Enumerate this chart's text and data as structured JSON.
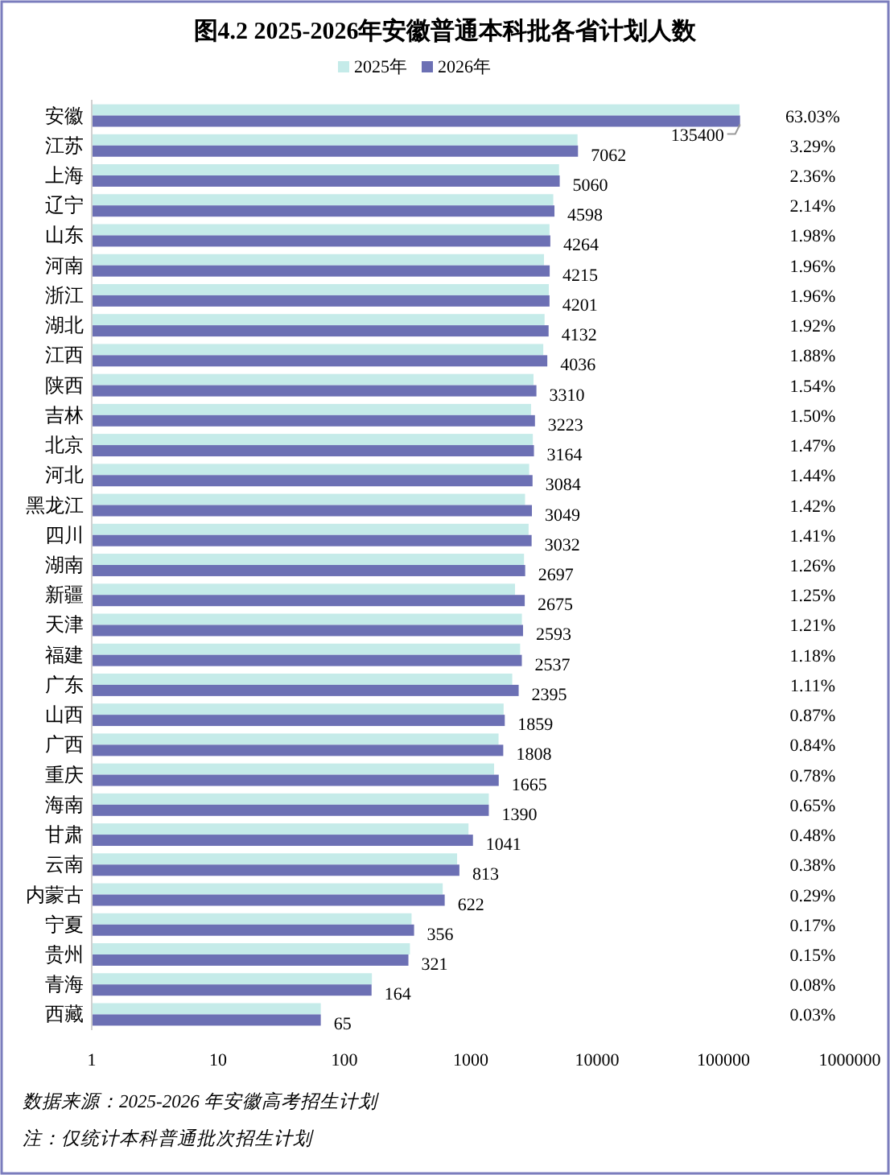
{
  "chart_data": {
    "type": "bar",
    "orientation": "horizontal",
    "title": "图4.2 2025-2026年安徽普通本科批各省计划人数",
    "log": "x",
    "legend": "top",
    "xlim": [
      1,
      1000000
    ],
    "xticks": [
      1,
      10,
      100,
      1000,
      10000,
      100000,
      1000000
    ],
    "categories": [
      "安徽",
      "江苏",
      "上海",
      "辽宁",
      "山东",
      "河南",
      "浙江",
      "湖北",
      "江西",
      "陕西",
      "吉林",
      "北京",
      "河北",
      "黑龙江",
      "四川",
      "湖南",
      "新疆",
      "天津",
      "福建",
      "广东",
      "山西",
      "广西",
      "重庆",
      "海南",
      "甘肃",
      "云南",
      "内蒙古",
      "宁夏",
      "贵州",
      "青海",
      "西藏"
    ],
    "series": [
      {
        "name": "2025年",
        "color": "#c5ebe9",
        "values": [
          134000,
          7000,
          5000,
          4500,
          4200,
          3800,
          4150,
          3840,
          3750,
          3140,
          3000,
          3100,
          2900,
          2690,
          2870,
          2640,
          2240,
          2540,
          2460,
          2130,
          1820,
          1660,
          1530,
          1390,
          960,
          780,
          600,
          340,
          330,
          165,
          65
        ]
      },
      {
        "name": "2026年",
        "color": "#6c70b4",
        "values": [
          135400,
          7062,
          5060,
          4598,
          4264,
          4215,
          4201,
          4132,
          4036,
          3310,
          3223,
          3164,
          3084,
          3049,
          3032,
          2697,
          2675,
          2593,
          2537,
          2395,
          1859,
          1808,
          1665,
          1390,
          1041,
          813,
          622,
          356,
          321,
          164,
          65
        ],
        "value_labels": [
          "135400",
          "7062",
          "5060",
          "4598",
          "4264",
          "4215",
          "4201",
          "4132",
          "4036",
          "3310",
          "3223",
          "3164",
          "3084",
          "3049",
          "3032",
          "2697",
          "2675",
          "2593",
          "2537",
          "2395",
          "1859",
          "1808",
          "1665",
          "1390",
          "1041",
          "813",
          "622",
          "356",
          "321",
          "164",
          "65"
        ]
      }
    ],
    "annotations": [
      "63.03%",
      "3.29%",
      "2.36%",
      "2.14%",
      "1.98%",
      "1.96%",
      "1.96%",
      "1.92%",
      "1.88%",
      "1.54%",
      "1.50%",
      "1.47%",
      "1.44%",
      "1.42%",
      "1.41%",
      "1.26%",
      "1.25%",
      "1.21%",
      "1.18%",
      "1.11%",
      "0.87%",
      "0.84%",
      "0.78%",
      "0.65%",
      "0.48%",
      "0.38%",
      "0.29%",
      "0.17%",
      "0.15%",
      "0.08%",
      "0.03%",
      "数据来源：2025-2026 年安徽高考招生计划",
      "注：仅统计本科普通批次招生计划"
    ]
  }
}
